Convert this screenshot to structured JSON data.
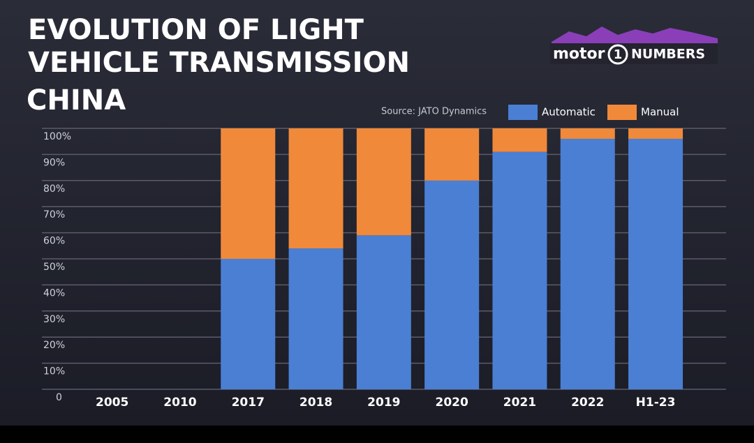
{
  "chart_data": {
    "type": "stacked_bar",
    "title_lines": [
      "EVOLUTION OF LIGHT",
      "VEHICLE TRANSMISSION"
    ],
    "subtitle": "CHINA",
    "source": "Source: JATO Dynamics",
    "logo": [
      "motor",
      "1",
      "NUMBERS"
    ],
    "categories": [
      "2005",
      "2010",
      "2017",
      "2018",
      "2019",
      "2020",
      "2021",
      "2022",
      "H1-23"
    ],
    "series": [
      {
        "name": "Automatic",
        "color": "#4a7fd4",
        "values": [
          null,
          null,
          50,
          54,
          59,
          80,
          91,
          96,
          96
        ]
      },
      {
        "name": "Manual",
        "color": "#f0893a",
        "values": [
          null,
          null,
          50,
          46,
          41,
          20,
          9,
          4,
          4
        ]
      }
    ],
    "ylim": [
      0,
      100
    ],
    "yticks": [
      0,
      {
        "value": 10,
        "label": "10%"
      },
      {
        "value": 20,
        "label": "20%"
      },
      {
        "value": 30,
        "label": "30%"
      },
      {
        "value": 40,
        "label": "40%"
      },
      {
        "value": 50,
        "label": "50%"
      },
      {
        "value": 60,
        "label": "60%"
      },
      {
        "value": 70,
        "label": "70%"
      },
      {
        "value": 80,
        "label": "80%"
      },
      {
        "value": 90,
        "label": "90%"
      },
      {
        "value": 100,
        "label": "100%"
      }
    ],
    "grid": true,
    "legend": "top-right"
  }
}
